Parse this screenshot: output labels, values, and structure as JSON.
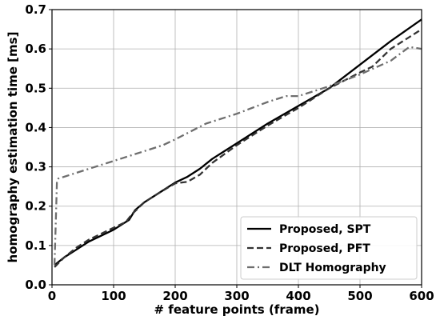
{
  "chart_data": {
    "type": "line",
    "title": "",
    "xlabel": "# feature points (frame)",
    "ylabel": "homography estimation time [ms]",
    "xlim": [
      0,
      600
    ],
    "ylim": [
      0,
      0.7
    ],
    "xticks": [
      0,
      100,
      200,
      300,
      400,
      500,
      600
    ],
    "xtick_labels": [
      "0",
      "100",
      "200",
      "300",
      "400",
      "500",
      "600"
    ],
    "yticks": [
      0,
      0.1,
      0.2,
      0.3,
      0.4,
      0.5,
      0.6,
      0.7
    ],
    "ytick_labels": [
      "0.0",
      "0.1",
      "0.2",
      "0.3",
      "0.4",
      "0.5",
      "0.6",
      "0.7"
    ],
    "grid": true,
    "legend_position": "bottom-right",
    "series": [
      {
        "name": "Proposed, SPT",
        "color": "#000000",
        "dash": "solid",
        "x": [
          4,
          20,
          40,
          60,
          80,
          100,
          115,
          125,
          135,
          150,
          175,
          200,
          220,
          240,
          260,
          280,
          300,
          350,
          400,
          450,
          500,
          550,
          600
        ],
        "y": [
          0.05,
          0.07,
          0.09,
          0.11,
          0.125,
          0.14,
          0.155,
          0.165,
          0.19,
          0.21,
          0.235,
          0.26,
          0.275,
          0.295,
          0.32,
          0.34,
          0.36,
          0.41,
          0.455,
          0.5,
          0.56,
          0.62,
          0.675
        ]
      },
      {
        "name": "Proposed, PFT",
        "color": "#333333",
        "dash": "dashed",
        "x": [
          4,
          20,
          40,
          60,
          80,
          100,
          120,
          130,
          150,
          175,
          200,
          220,
          240,
          260,
          300,
          350,
          400,
          450,
          500,
          520,
          550,
          600
        ],
        "y": [
          0.045,
          0.07,
          0.095,
          0.115,
          0.13,
          0.145,
          0.16,
          0.18,
          0.21,
          0.235,
          0.258,
          0.262,
          0.28,
          0.31,
          0.355,
          0.405,
          0.45,
          0.5,
          0.54,
          0.555,
          0.6,
          0.65
        ]
      },
      {
        "name": "DLT Homography",
        "color": "#6e6e6e",
        "dash": "dashdot",
        "x": [
          4,
          6,
          8,
          10,
          20,
          40,
          60,
          80,
          100,
          120,
          150,
          180,
          200,
          250,
          300,
          350,
          380,
          400,
          450,
          500,
          550,
          580,
          600
        ],
        "y": [
          0.05,
          0.15,
          0.265,
          0.27,
          0.275,
          0.285,
          0.295,
          0.305,
          0.315,
          0.325,
          0.34,
          0.355,
          0.37,
          0.41,
          0.435,
          0.465,
          0.48,
          0.48,
          0.505,
          0.535,
          0.57,
          0.605,
          0.6
        ]
      }
    ]
  }
}
